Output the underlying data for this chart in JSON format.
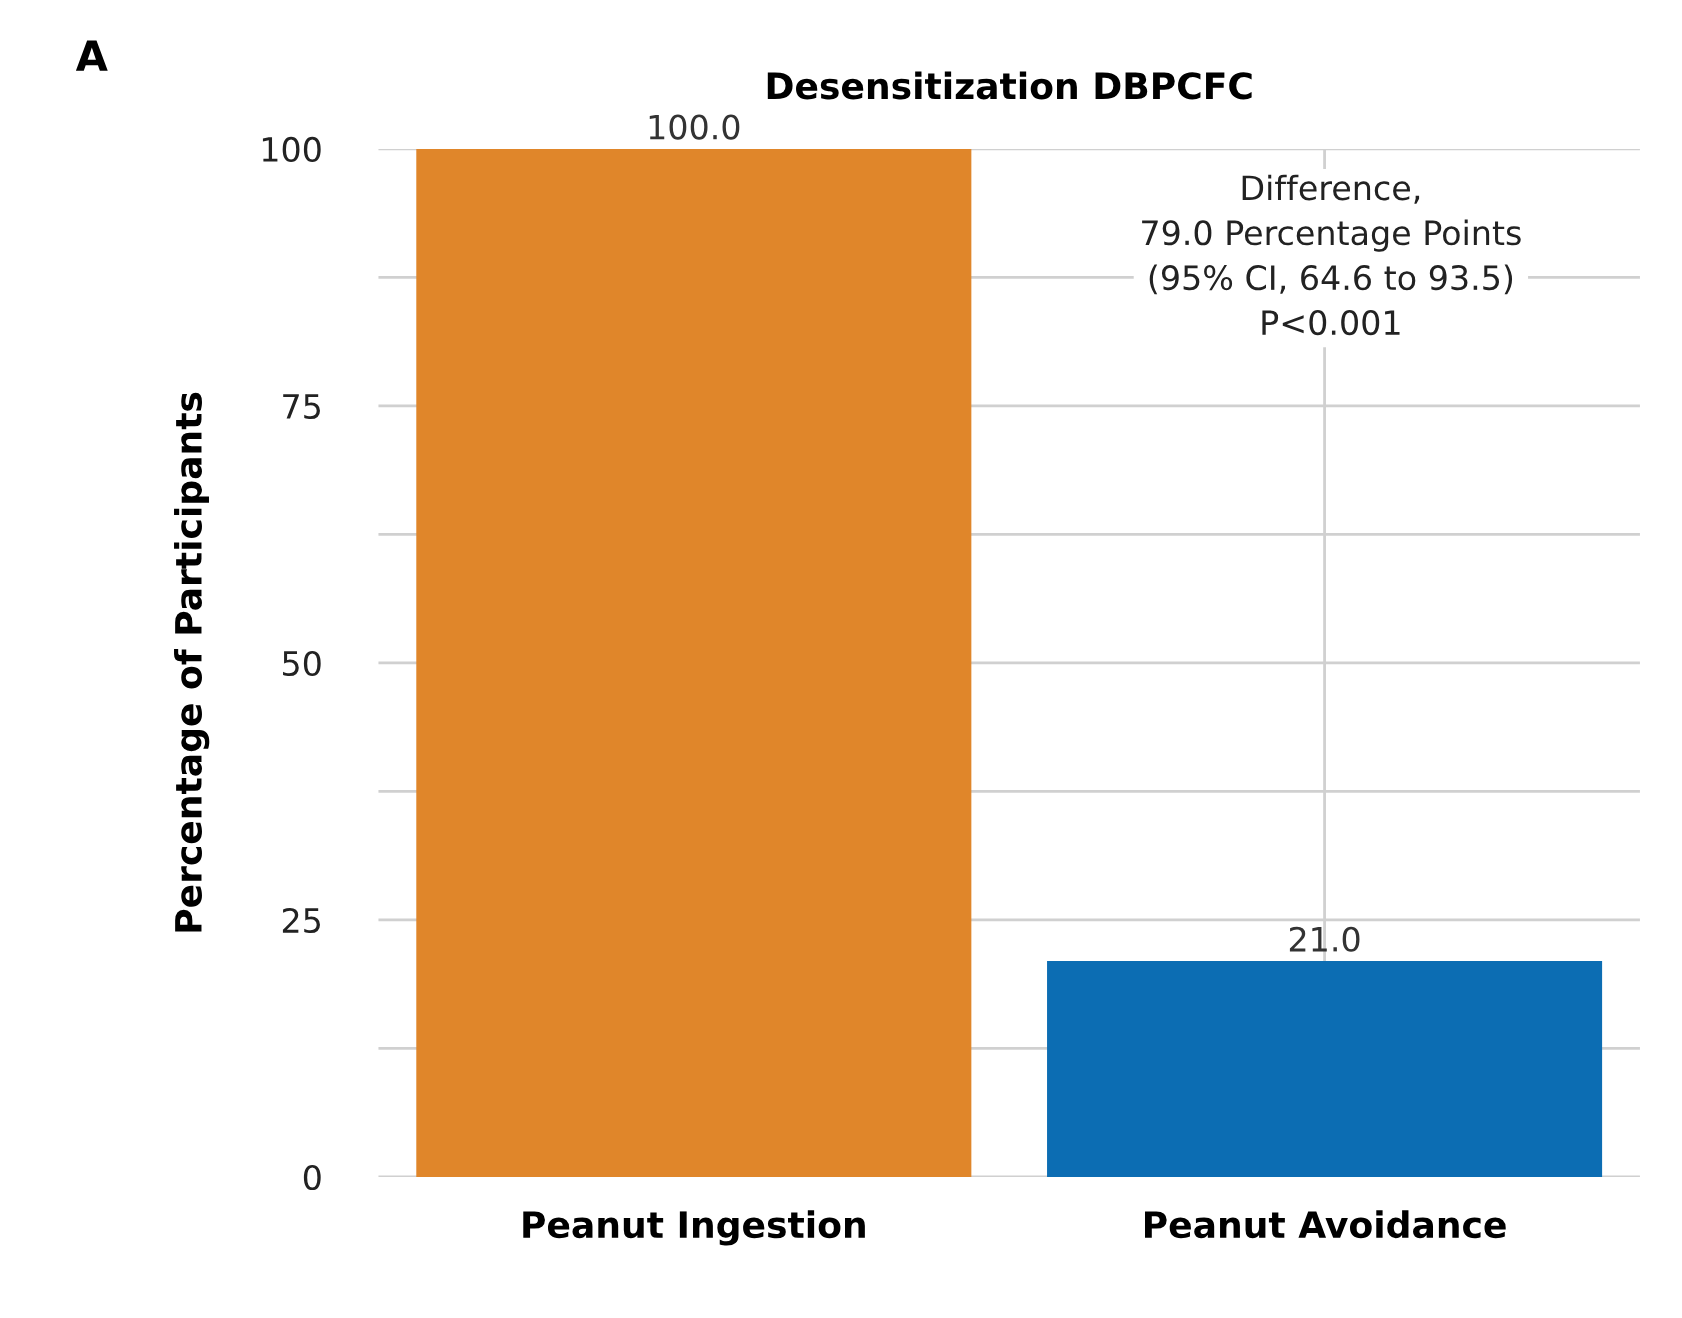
{
  "chart_data": {
    "type": "bar",
    "title": "Desensitization DBPCFC",
    "ylabel": "Percentage of Participants",
    "categories": [
      "Peanut Ingestion",
      "Peanut Avoidance"
    ],
    "values": [
      100.0,
      21.0
    ],
    "colors": [
      "#e0862a",
      "#0c6db3"
    ],
    "value_labels": [
      "100.0",
      "21.0"
    ],
    "ylim": [
      0,
      100
    ],
    "yticks": [
      0,
      {
        "value": 12.5,
        "label": null
      },
      25,
      {
        "value": 37.5,
        "label": null
      },
      50,
      {
        "value": 62.5,
        "label": null
      },
      75,
      {
        "value": 87.5,
        "label": null
      },
      100
    ],
    "grid": true,
    "annotations": [
      "A",
      "Difference,\n79.0 Percentage Points\n(95% CI, 64.6 to 93.5)\nP<0.001"
    ]
  }
}
